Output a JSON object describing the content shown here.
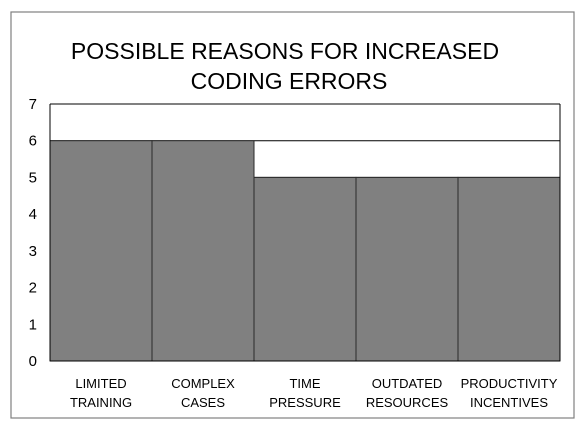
{
  "chart_data": {
    "type": "bar",
    "title": "POSSIBLE REASONS FOR INCREASED CODING ERRORS",
    "title_lines": [
      "POSSIBLE REASONS FOR INCREASED",
      "CODING ERRORS"
    ],
    "categories": [
      "LIMITED TRAINING",
      "COMPLEX CASES",
      "TIME PRESSURE",
      "OUTDATED RESOURCES",
      "PRODUCTIVITY INCENTIVES"
    ],
    "category_lines": [
      [
        "LIMITED",
        "TRAINING"
      ],
      [
        "COMPLEX",
        "CASES"
      ],
      [
        "TIME",
        "PRESSURE"
      ],
      [
        "OUTDATED",
        "RESOURCES"
      ],
      [
        "PRODUCTIVITY",
        "INCENTIVES"
      ]
    ],
    "values": [
      6,
      6,
      5,
      5,
      5
    ],
    "xlabel": "",
    "ylabel": "",
    "ylim": [
      0,
      7
    ],
    "yticks": [
      0,
      1,
      2,
      3,
      4,
      5,
      6,
      7
    ],
    "grid": true,
    "legend": "none",
    "colors": {
      "bar_fill": "#808080",
      "bar_stroke": "#2a2a2a",
      "gridline": "#000000",
      "frame": "#808080",
      "text": "#000000"
    }
  }
}
